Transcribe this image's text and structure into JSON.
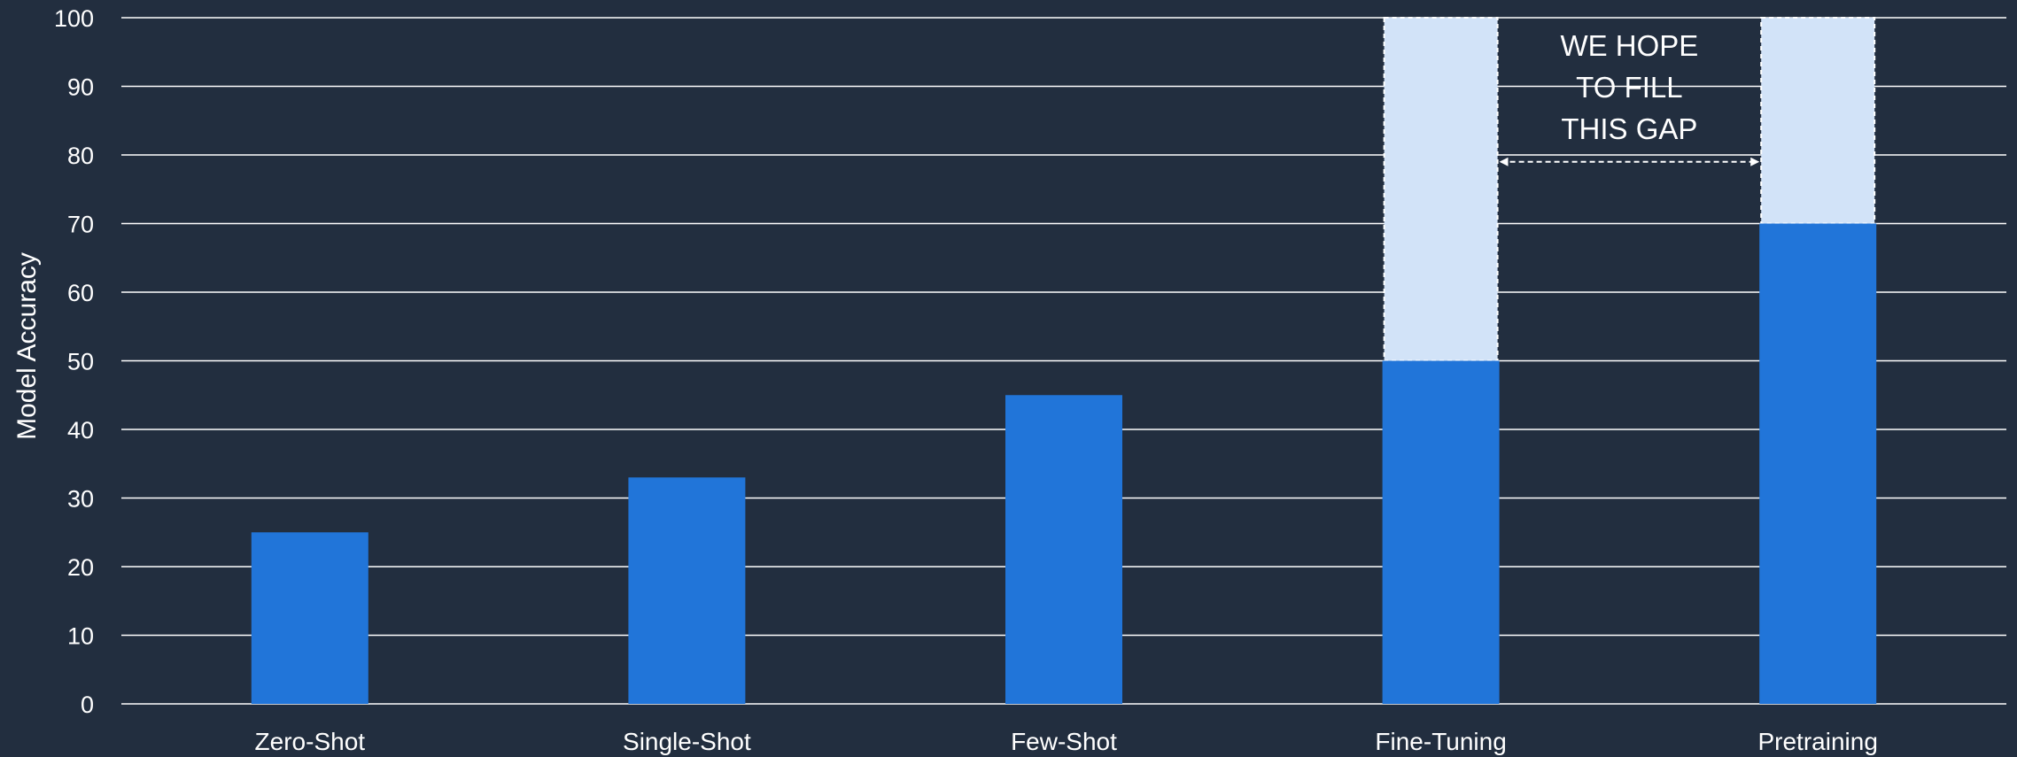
{
  "chart_data": {
    "type": "bar",
    "categories": [
      "Zero-Shot",
      "Single-Shot",
      "Few-Shot",
      "Fine-Tuning",
      "Pretraining"
    ],
    "values": [
      25,
      33,
      45,
      50,
      70
    ],
    "gap_to_100": [
      null,
      null,
      null,
      50,
      30
    ],
    "ylabel": "Model Accuracy",
    "xlabel": "",
    "ylim": [
      0,
      100
    ],
    "yticks": [
      "0",
      "10",
      "20",
      "30",
      "40",
      "50",
      "60",
      "70",
      "80",
      "90",
      "100"
    ],
    "grid": true,
    "annotation": {
      "lines": [
        "WE HOPE",
        "TO FILL",
        "THIS GAP"
      ],
      "between": [
        "Fine-Tuning",
        "Pretraining"
      ],
      "arrow": "double-headed, dashed"
    }
  },
  "colors": {
    "background": "#222e3f",
    "bar": "#2175d9",
    "gap_fill": "#d2e3f8",
    "gap_border": "#ffffff",
    "grid": "#ffffff",
    "text": "#ffffff"
  }
}
